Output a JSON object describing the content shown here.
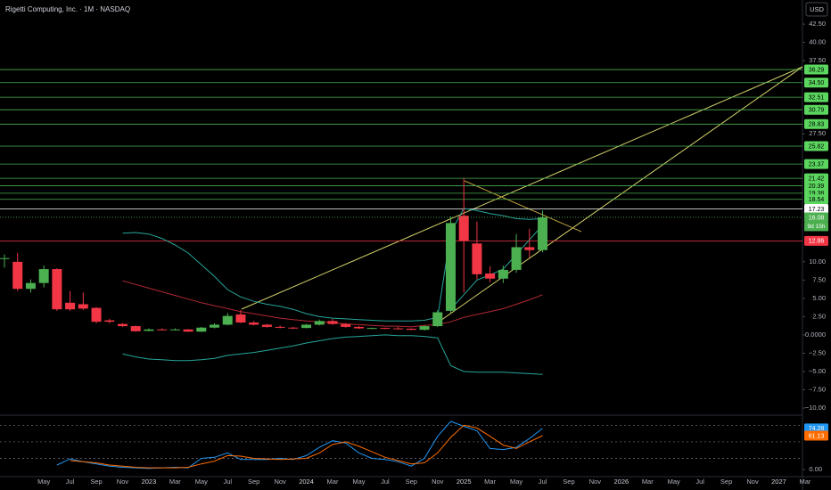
{
  "chart_data": [
    {
      "type": "candlestick",
      "title": "Rigetti Computing, Inc. · 1M · NASDAQ",
      "currency": "USD",
      "categories": [
        null,
        null,
        null,
        "May",
        null,
        "Jul",
        null,
        "Sep",
        null,
        "Nov",
        null,
        "2023",
        null,
        "Mar",
        null,
        "May",
        null,
        "Jul",
        null,
        "Sep",
        null,
        "Nov",
        null,
        "2024",
        null,
        "Mar",
        null,
        "May",
        null,
        "Jul",
        null,
        "Sep",
        null,
        "Nov",
        null,
        "2025",
        null,
        "Mar",
        null,
        "May",
        null,
        "Jul",
        null,
        "Sep",
        null,
        "Nov",
        null,
        "2026",
        null,
        "Mar",
        null,
        "May",
        null,
        "Jul",
        null,
        "Sep",
        null,
        "Nov",
        null,
        "2027",
        null,
        "Mar"
      ],
      "open": [
        10.4,
        10.0,
        6.3,
        7.1,
        9.0,
        4.4,
        4.2,
        3.7,
        2.0,
        1.5,
        1.2,
        0.55,
        0.75,
        0.7,
        0.75,
        0.45,
        1.0,
        1.4,
        2.8,
        1.7,
        1.4,
        1.1,
        1.0,
        0.95,
        1.4,
        1.9,
        1.5,
        1.1,
        0.9,
        0.95,
        0.9,
        0.85,
        0.7,
        1.2,
        3.3,
        16.3,
        12.5,
        8.4,
        7.7,
        8.9,
        12.0,
        11.6,
        null,
        null,
        null,
        null,
        null,
        null,
        null,
        null,
        null,
        null,
        null,
        null,
        null,
        null,
        null,
        null,
        null,
        null,
        null,
        null
      ],
      "high": [
        11.0,
        11.2,
        7.6,
        9.5,
        9.1,
        6.0,
        5.8,
        3.8,
        2.2,
        1.6,
        1.3,
        0.9,
        0.9,
        0.9,
        0.8,
        1.1,
        1.6,
        3.0,
        3.4,
        1.9,
        1.5,
        1.3,
        1.1,
        1.5,
        2.1,
        2.2,
        1.6,
        1.2,
        1.0,
        1.0,
        1.1,
        0.9,
        1.3,
        3.4,
        16.2,
        21.4,
        15.5,
        9.4,
        9.5,
        13.8,
        14.5,
        17.0,
        null,
        null,
        null,
        null,
        null,
        null,
        null,
        null,
        null,
        null,
        null,
        null,
        null,
        null,
        null,
        null,
        null,
        null,
        null,
        null
      ],
      "low": [
        9.2,
        6.0,
        5.8,
        6.5,
        3.3,
        3.3,
        3.4,
        1.6,
        1.6,
        1.1,
        0.45,
        0.5,
        0.6,
        0.6,
        0.4,
        0.4,
        0.9,
        1.3,
        1.6,
        1.3,
        1.0,
        0.9,
        0.8,
        0.9,
        1.3,
        1.4,
        1.0,
        0.8,
        0.8,
        0.8,
        0.75,
        0.65,
        0.6,
        1.1,
        3.0,
        5.8,
        7.6,
        7.2,
        7.1,
        8.5,
        10.6,
        11.3,
        null,
        null,
        null,
        null,
        null,
        null,
        null,
        null,
        null,
        null,
        null,
        null,
        null,
        null,
        null,
        null,
        null,
        null,
        null,
        null
      ],
      "close": [
        10.5,
        6.3,
        7.1,
        9.0,
        3.5,
        3.5,
        3.6,
        1.8,
        1.8,
        1.2,
        0.5,
        0.75,
        0.7,
        0.75,
        0.45,
        1.0,
        1.4,
        2.6,
        1.7,
        1.4,
        1.1,
        1.0,
        0.95,
        1.4,
        1.9,
        1.5,
        1.1,
        0.9,
        0.95,
        0.9,
        0.85,
        0.7,
        1.2,
        3.1,
        15.3,
        12.9,
        8.3,
        7.7,
        8.9,
        12.0,
        11.6,
        16.08,
        null,
        null,
        null,
        null,
        null,
        null,
        null,
        null,
        null,
        null,
        null,
        null,
        null,
        null,
        null,
        null,
        null,
        null,
        null,
        null
      ],
      "up_color": "#4caf50",
      "down_color": "#f23645",
      "countdown": "9d 15h",
      "series": [
        {
          "color": "#26a69a",
          "values": [
            null,
            null,
            null,
            null,
            null,
            null,
            null,
            null,
            null,
            13.9,
            14.0,
            13.8,
            13.2,
            12.3,
            11.2,
            9.6,
            8.0,
            6.2,
            5.2,
            4.6,
            4.2,
            3.9,
            3.5,
            2.9,
            2.5,
            2.3,
            2.2,
            2.1,
            2.0,
            1.9,
            1.9,
            1.9,
            2.0,
            2.4,
            14.0,
            17.3,
            17.0,
            16.6,
            16.3,
            15.9,
            15.8,
            15.9,
            null,
            null,
            null,
            null,
            null,
            null,
            null,
            null,
            null,
            null,
            null,
            null,
            null,
            null,
            null,
            null,
            null,
            null,
            null,
            null
          ]
        },
        {
          "color": "#26a69a",
          "values": [
            null,
            null,
            null,
            null,
            null,
            null,
            null,
            null,
            null,
            -2.6,
            -3.0,
            -3.3,
            -3.4,
            -3.5,
            -3.5,
            -3.4,
            -3.2,
            -2.8,
            -2.6,
            -2.4,
            -2.1,
            -1.8,
            -1.5,
            -1.1,
            -0.8,
            -0.5,
            -0.3,
            -0.2,
            -0.1,
            0.0,
            -0.1,
            -0.1,
            -0.2,
            -0.4,
            -4.2,
            -5.0,
            -5.1,
            -5.1,
            -5.1,
            -5.2,
            -5.3,
            -5.4,
            null,
            null,
            null,
            null,
            null,
            null,
            null,
            null,
            null,
            null,
            null,
            null,
            null,
            null,
            null,
            null,
            null,
            null,
            null,
            null
          ]
        },
        {
          "color": "#26a69a",
          "values": [
            null,
            null,
            null,
            null,
            null,
            null,
            null,
            null,
            null,
            null,
            null,
            null,
            null,
            null,
            null,
            null,
            null,
            null,
            null,
            null,
            null,
            null,
            null,
            null,
            null,
            null,
            null,
            null,
            null,
            null,
            null,
            null,
            null,
            null,
            3.5,
            5.5,
            7.5,
            8.2,
            9.0,
            11.0,
            13.0,
            15.0,
            null,
            null,
            null,
            null,
            null,
            null,
            null,
            null,
            null,
            null,
            null,
            null,
            null,
            null,
            null,
            null,
            null,
            null,
            null,
            null
          ]
        },
        {
          "color": "#b22833",
          "values": [
            null,
            null,
            null,
            null,
            null,
            null,
            null,
            null,
            null,
            7.4,
            6.9,
            6.4,
            5.9,
            5.4,
            4.9,
            4.4,
            4.0,
            3.6,
            3.2,
            2.9,
            2.6,
            2.3,
            2.1,
            1.9,
            1.8,
            1.7,
            1.5,
            1.4,
            1.3,
            1.2,
            1.2,
            1.1,
            1.3,
            1.4,
            1.8,
            2.4,
            2.8,
            3.2,
            3.6,
            4.2,
            4.8,
            5.5,
            null,
            null,
            null,
            null,
            null,
            null,
            null,
            null,
            null,
            null,
            null,
            null,
            null,
            null,
            null,
            null,
            null,
            null,
            null,
            null
          ]
        }
      ],
      "levels": [
        {
          "value": 36.29,
          "color": "#4caf50"
        },
        {
          "value": 34.5,
          "label": "34.50",
          "color": "#4caf50"
        },
        {
          "value": 32.51,
          "color": "#4caf50"
        },
        {
          "value": 30.79,
          "color": "#4caf50"
        },
        {
          "value": 28.83,
          "color": "#4caf50"
        },
        {
          "value": 25.82,
          "color": "#4caf50"
        },
        {
          "value": 23.37,
          "color": "#4caf50"
        },
        {
          "value": 21.42,
          "color": "#4caf50"
        },
        {
          "value": 20.39,
          "color": "#4caf50"
        },
        {
          "value": 19.38,
          "color": "#4caf50"
        },
        {
          "value": 18.54,
          "color": "#4caf50"
        },
        {
          "value": 17.23,
          "color": "#ffffff"
        },
        {
          "value": 12.86,
          "color": "#f23645"
        }
      ],
      "ylim": [
        -10.85,
        45.8
      ],
      "yticks": [
        {
          "value": 42.5,
          "label": "42.50"
        },
        {
          "value": 40,
          "label": "40.00"
        },
        {
          "value": 37.5,
          "label": "37.50"
        },
        {
          "value": 27.5,
          "label": "27.50"
        },
        {
          "value": 10,
          "label": "10.00"
        },
        {
          "value": 7.5,
          "label": "7.50"
        },
        {
          "value": 5,
          "label": "5.00"
        },
        {
          "value": 2.5,
          "label": "2.50"
        },
        {
          "value": 0,
          "label": "0.0000"
        },
        {
          "value": -2.5,
          "label": "−2.50"
        },
        {
          "value": -5,
          "label": "−5.00"
        },
        {
          "value": -7.5,
          "label": "−7.50"
        },
        {
          "value": -10,
          "label": "−10.00"
        }
      ],
      "grid": false
    },
    {
      "type": "line",
      "series": [
        {
          "color": "#2196f3",
          "values": [
            null,
            null,
            null,
            null,
            8,
            19,
            14,
            10,
            6,
            4,
            3,
            2,
            3,
            4,
            3,
            20,
            22,
            30,
            18,
            18,
            18,
            20,
            18,
            25,
            40,
            52,
            48,
            30,
            20,
            18,
            14,
            6,
            20,
            60,
            87,
            78,
            70,
            38,
            36,
            40,
            56,
            74.28,
            null,
            null,
            null,
            null,
            null,
            null,
            null,
            null,
            null,
            null,
            null,
            null,
            null,
            null,
            null,
            null,
            null,
            null,
            null,
            null
          ]
        },
        {
          "color": "#ff6d00",
          "values": [
            null,
            null,
            null,
            null,
            null,
            16,
            14,
            12,
            8,
            6,
            4,
            3,
            3,
            3,
            4,
            10,
            15,
            25,
            24,
            20,
            19,
            18,
            19,
            20,
            30,
            45,
            50,
            42,
            32,
            22,
            16,
            10,
            12,
            30,
            58,
            80,
            75,
            60,
            44,
            38,
            50,
            61.13,
            null,
            null,
            null,
            null,
            null,
            null,
            null,
            null,
            null,
            null,
            null,
            null,
            null,
            null,
            null,
            null,
            null,
            null,
            null,
            null
          ]
        }
      ],
      "levels": [
        80,
        50,
        20
      ],
      "ylim": [
        -13,
        95
      ],
      "yticks": [
        {
          "value": 0,
          "label": "0.00"
        }
      ],
      "grid": false
    }
  ]
}
